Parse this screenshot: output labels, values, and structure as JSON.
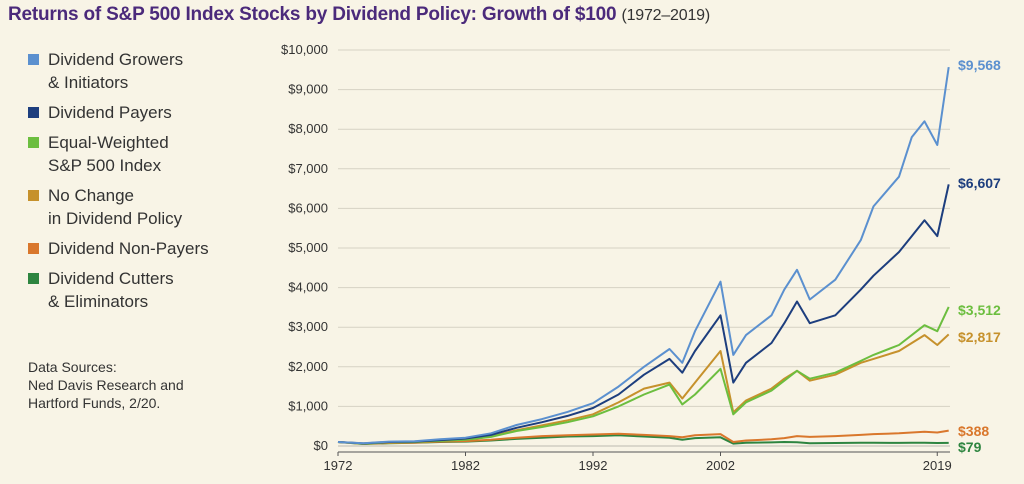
{
  "header": {
    "title": "Returns of S&P 500 Index Stocks by Dividend Policy: Growth of $100",
    "subtitle": "(1972–2019)"
  },
  "source_note": "Data Sources:\nNed Davis Research and\nHartford Funds, 2/20.",
  "chart_data": {
    "type": "line",
    "title": "Returns of S&P 500 Index Stocks by Dividend Policy: Growth of $100 (1972–2019)",
    "xlabel": "",
    "ylabel": "",
    "xlim": [
      1972,
      2020
    ],
    "ylim": [
      0,
      10000
    ],
    "grid": true,
    "legend_position": "left",
    "x_ticks": [
      1972,
      1982,
      1992,
      2002,
      2019
    ],
    "y_ticks": [
      {
        "value": 0,
        "label": "$0"
      },
      {
        "value": 1000,
        "label": "$1,000"
      },
      {
        "value": 2000,
        "label": "$2,000"
      },
      {
        "value": 3000,
        "label": "$3,000"
      },
      {
        "value": 4000,
        "label": "$4,000"
      },
      {
        "value": 5000,
        "label": "$5,000"
      },
      {
        "value": 6000,
        "label": "$6,000"
      },
      {
        "value": 7000,
        "label": "$7,000"
      },
      {
        "value": 8000,
        "label": "$8,000"
      },
      {
        "value": 9000,
        "label": "$9,000"
      },
      {
        "value": 10000,
        "label": "$10,000"
      }
    ],
    "x": [
      1972,
      1974,
      1976,
      1978,
      1980,
      1982,
      1984,
      1986,
      1988,
      1990,
      1992,
      1994,
      1996,
      1998,
      1999,
      2000,
      2002,
      2003,
      2004,
      2006,
      2007,
      2008,
      2009,
      2011,
      2013,
      2014,
      2016,
      2017,
      2018,
      2019,
      2019.9
    ],
    "series": [
      {
        "name": "Dividend Growers & Initiators",
        "legend_label": "Dividend Growers\n& Initiators",
        "color": "#5b90cf",
        "end_label": "$9,568",
        "values": [
          100,
          70,
          110,
          120,
          170,
          210,
          320,
          530,
          680,
          860,
          1080,
          1500,
          2000,
          2450,
          2100,
          2900,
          4150,
          2300,
          2800,
          3300,
          3950,
          4450,
          3700,
          4200,
          5200,
          6050,
          6800,
          7800,
          8200,
          7600,
          9568
        ]
      },
      {
        "name": "Dividend Payers",
        "legend_label": "Dividend Payers",
        "color": "#1d3e7e",
        "end_label": "$6,607",
        "values": [
          100,
          65,
          100,
          110,
          150,
          190,
          280,
          460,
          600,
          760,
          960,
          1300,
          1800,
          2200,
          1850,
          2400,
          3300,
          1600,
          2100,
          2600,
          3100,
          3650,
          3100,
          3300,
          3950,
          4300,
          4900,
          5300,
          5700,
          5300,
          6607
        ]
      },
      {
        "name": "Equal-Weighted S&P 500 Index",
        "legend_label": "Equal-Weighted\nS&P 500 Index",
        "color": "#6cbe3f",
        "end_label": "$3,512",
        "values": [
          100,
          60,
          90,
          100,
          130,
          160,
          230,
          380,
          480,
          600,
          750,
          1000,
          1300,
          1550,
          1050,
          1300,
          1950,
          800,
          1100,
          1400,
          1650,
          1900,
          1700,
          1850,
          2150,
          2300,
          2550,
          2800,
          3050,
          2900,
          3512
        ]
      },
      {
        "name": "No Change in Dividend Policy",
        "legend_label": "No Change\nin Dividend Policy",
        "color": "#c6912c",
        "end_label": "$2,817",
        "values": [
          100,
          60,
          90,
          100,
          130,
          160,
          240,
          400,
          520,
          650,
          800,
          1100,
          1450,
          1600,
          1200,
          1600,
          2400,
          850,
          1150,
          1450,
          1700,
          1900,
          1650,
          1800,
          2100,
          2200,
          2400,
          2600,
          2800,
          2550,
          2817
        ]
      },
      {
        "name": "Dividend Non-Payers",
        "legend_label": "Dividend Non-Payers",
        "color": "#d9772c",
        "end_label": "$388",
        "values": [
          100,
          55,
          75,
          85,
          110,
          125,
          160,
          210,
          250,
          270,
          290,
          310,
          280,
          250,
          220,
          270,
          300,
          100,
          140,
          170,
          200,
          250,
          230,
          250,
          280,
          300,
          320,
          340,
          360,
          340,
          388
        ]
      },
      {
        "name": "Dividend Cutters & Eliminators",
        "legend_label": "Dividend Cutters\n& Eliminators",
        "color": "#2e8540",
        "end_label": "$79",
        "values": [
          100,
          50,
          70,
          80,
          100,
          110,
          140,
          180,
          210,
          240,
          250,
          270,
          240,
          210,
          160,
          200,
          220,
          60,
          80,
          90,
          100,
          95,
          70,
          75,
          80,
          80,
          78,
          80,
          82,
          75,
          79
        ]
      }
    ]
  }
}
